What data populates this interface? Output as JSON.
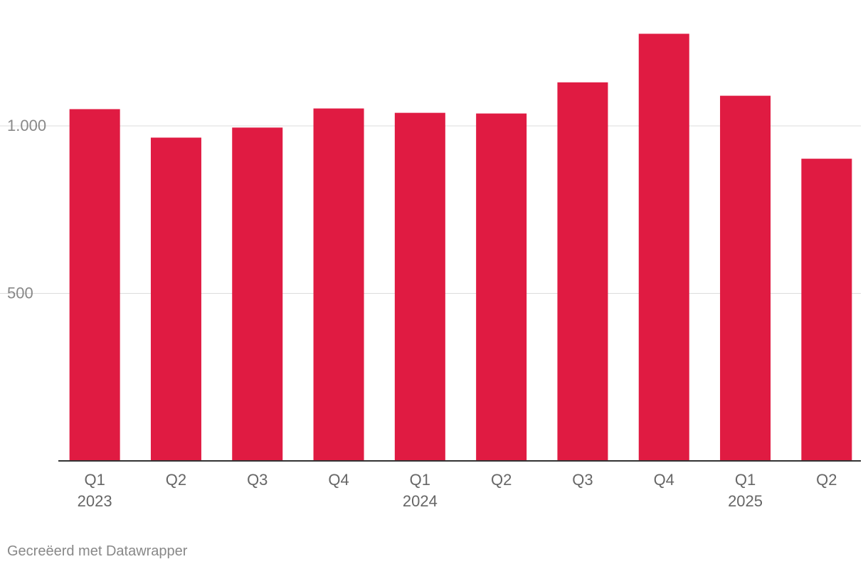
{
  "chart_data": {
    "type": "bar",
    "title": "",
    "xlabel": "",
    "ylabel": "",
    "categories": [
      "Q1",
      "Q2",
      "Q3",
      "Q4",
      "Q1",
      "Q2",
      "Q3",
      "Q4",
      "Q1",
      "Q2"
    ],
    "category_years": [
      "2023",
      "",
      "",
      "",
      "2024",
      "",
      "",
      "",
      "2025",
      ""
    ],
    "values": [
      1050,
      965,
      995,
      1052,
      1039,
      1037,
      1130,
      1275,
      1090,
      902
    ],
    "ylim": [
      0,
      1300
    ],
    "yticks": [
      500,
      1000
    ],
    "ytick_labels": [
      "500",
      "1.000"
    ],
    "grid": true,
    "legend": "none"
  },
  "colors": {
    "bar": "#e01b42",
    "grid": "#dddddd",
    "axis": "#333333",
    "tick_label": "#888888",
    "category_label": "#666666"
  },
  "footer": {
    "credit": "Gecreëerd met Datawrapper"
  }
}
